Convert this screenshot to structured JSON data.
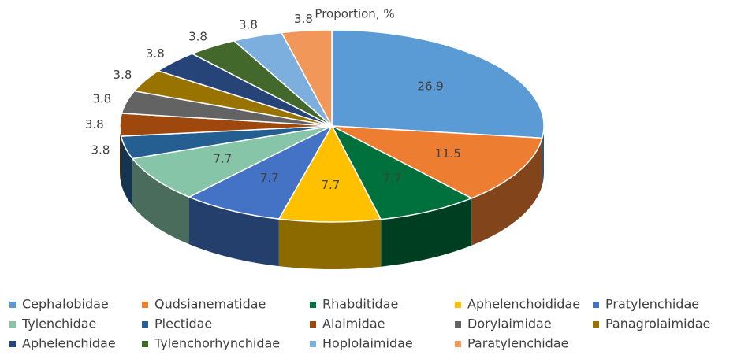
{
  "chart_data": {
    "type": "pie",
    "title": "Proportion, %",
    "categories": [
      "Cephalobidae",
      "Qudsianematidae",
      "Rhabditidae",
      "Aphelenchoididae",
      "Pratylenchidae",
      "Tylenchidae",
      "Plectidae",
      "Alaimidae",
      "Dorylaimidae",
      "Panagrolaimidae",
      "Aphelenchidae",
      "Tylenchorhynchidae",
      "Hoplolaimidae",
      "Paratylenchidae"
    ],
    "values": [
      26.9,
      11.5,
      7.7,
      7.7,
      7.7,
      7.7,
      3.8,
      3.8,
      3.8,
      3.8,
      3.8,
      3.8,
      3.8,
      3.8
    ],
    "colors": [
      "#5b9bd5",
      "#ed7d31",
      "#00703c",
      "#ffc000",
      "#4472c4",
      "#86c5a8",
      "#255e91",
      "#9e480e",
      "#636363",
      "#997300",
      "#264478",
      "#43682b",
      "#7cafdd",
      "#f1975a"
    ],
    "legend": "bottom"
  }
}
